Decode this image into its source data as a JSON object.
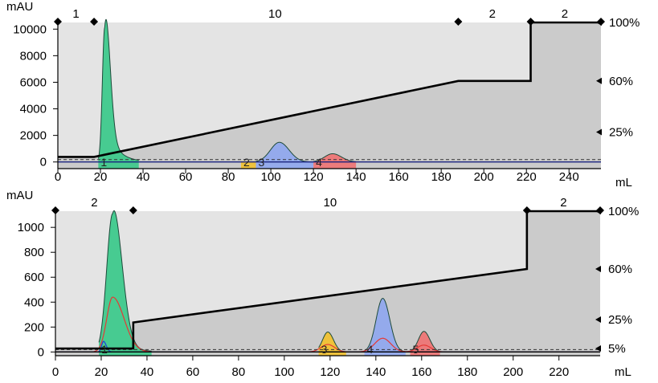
{
  "chart_data": [
    {
      "type": "area",
      "y_unit_label": "mAU",
      "x_unit_label": "mL",
      "xlim": [
        0,
        255
      ],
      "ylim": [
        -500,
        10500
      ],
      "x_ticks": [
        "0",
        "20",
        "40",
        "60",
        "80",
        "100",
        "120",
        "140",
        "160",
        "180",
        "200",
        "220",
        "240"
      ],
      "y_ticks": [
        "0",
        "2000",
        "4000",
        "6000",
        "8000",
        "10000"
      ],
      "right_axis_ticks": [
        {
          "label": "100%",
          "value": 100
        },
        {
          "label": "60%",
          "value": 60
        },
        {
          "label": "25%",
          "value": 25
        }
      ],
      "phase_labels": [
        {
          "label": "1",
          "x": 8.5
        },
        {
          "label": "10",
          "x": 102
        },
        {
          "label": "2",
          "x": 204
        },
        {
          "label": "2",
          "x": 238
        }
      ],
      "phase_markers_x": [
        0,
        17,
        188,
        222,
        255
      ],
      "gradient_percent": {
        "x": [
          0,
          17,
          188,
          222,
          222,
          255
        ],
        "y": [
          8,
          8,
          60,
          60,
          100,
          100
        ]
      },
      "fractions": [
        {
          "label": "1",
          "x_start": 19,
          "x_end": 38,
          "color": "#3ac98a"
        },
        {
          "label": "2",
          "x_start": 86,
          "x_end": 93,
          "color": "#f2c12e"
        },
        {
          "label": "3",
          "x_start": 93,
          "x_end": 120,
          "color": "#8fa7ef"
        },
        {
          "label": "4",
          "x_start": 120,
          "x_end": 140,
          "color": "#ef7373"
        }
      ],
      "peaks": [
        {
          "center": 22,
          "height": 10100,
          "width_left": 1.1,
          "width_right": 2.4,
          "tail": 3200,
          "tail_len": 5,
          "x_start": 19,
          "x_end": 38,
          "fill": "#3ac98a"
        },
        {
          "center": 104,
          "height": 1480,
          "width_left": 4.2,
          "width_right": 4.6,
          "x_start": 93,
          "x_end": 120,
          "fill": "#8fa7ef"
        },
        {
          "center": 129,
          "height": 620,
          "width_left": 3.8,
          "width_right": 4.2,
          "x_start": 120,
          "x_end": 140,
          "fill": "#ef7373"
        }
      ],
      "baseline_color": "#1a237e"
    },
    {
      "type": "area",
      "y_unit_label": "mAU",
      "x_unit_label": "mL",
      "xlim": [
        0,
        238
      ],
      "ylim": [
        -30,
        1130
      ],
      "x_ticks": [
        "0",
        "20",
        "40",
        "60",
        "80",
        "100",
        "120",
        "140",
        "160",
        "180",
        "200",
        "220"
      ],
      "y_ticks": [
        "0",
        "200",
        "400",
        "600",
        "800",
        "1000"
      ],
      "right_axis_ticks": [
        {
          "label": "100%",
          "value": 100
        },
        {
          "label": "60%",
          "value": 60
        },
        {
          "label": "25%",
          "value": 25
        },
        {
          "label": "5%",
          "value": 5
        }
      ],
      "phase_labels": [
        {
          "label": "2",
          "x": 17
        },
        {
          "label": "10",
          "x": 120
        },
        {
          "label": "2",
          "x": 222
        }
      ],
      "phase_markers_x": [
        0,
        34,
        206,
        238
      ],
      "gradient_percent": {
        "x": [
          0,
          34,
          34,
          206,
          206,
          238
        ],
        "y": [
          5,
          5,
          23,
          60,
          100,
          100
        ]
      },
      "fractions": [
        {
          "label": "1",
          "x_start": 19,
          "x_end": 42,
          "color": "#3ac98a"
        },
        {
          "label": "3",
          "x_start": 115,
          "x_end": 127,
          "color": "#f2c12e"
        },
        {
          "label": "4",
          "x_start": 135,
          "x_end": 153,
          "color": "#8fa7ef"
        },
        {
          "label": "5",
          "x_start": 155,
          "x_end": 168,
          "color": "#ef7373"
        }
      ],
      "peaks": [
        {
          "center": 25,
          "height": 1110,
          "width_left": 2.6,
          "width_right": 4.0,
          "tail": 120,
          "tail_len": 6,
          "x_start": 19,
          "x_end": 42,
          "fill": "#3ac98a"
        },
        {
          "center": 119,
          "height": 160,
          "width_left": 2.3,
          "width_right": 2.5,
          "x_start": 115,
          "x_end": 127,
          "fill": "#f2c12e"
        },
        {
          "center": 143,
          "height": 430,
          "width_left": 2.9,
          "width_right": 3.1,
          "x_start": 135,
          "x_end": 153,
          "fill": "#8fa7ef"
        },
        {
          "center": 161,
          "height": 165,
          "width_left": 2.4,
          "width_right": 2.6,
          "x_start": 155,
          "x_end": 168,
          "fill": "#ef7373"
        }
      ],
      "secondary_trace": {
        "color": "#e53935",
        "peaks": [
          {
            "center": 25,
            "height": 440,
            "width_left": 2.6,
            "width_right": 5.0
          },
          {
            "center": 119,
            "height": 60,
            "width_left": 3,
            "width_right": 3
          },
          {
            "center": 143,
            "height": 110,
            "width_left": 3.5,
            "width_right": 3.5
          },
          {
            "center": 161,
            "height": 55,
            "width_left": 3,
            "width_right": 3
          }
        ]
      },
      "tertiary_trace": {
        "color": "#1e40d8",
        "peaks": [
          {
            "center": 21,
            "height": 85,
            "width_left": 0.8,
            "width_right": 1.2
          }
        ]
      },
      "baseline_color": "#000000"
    }
  ]
}
